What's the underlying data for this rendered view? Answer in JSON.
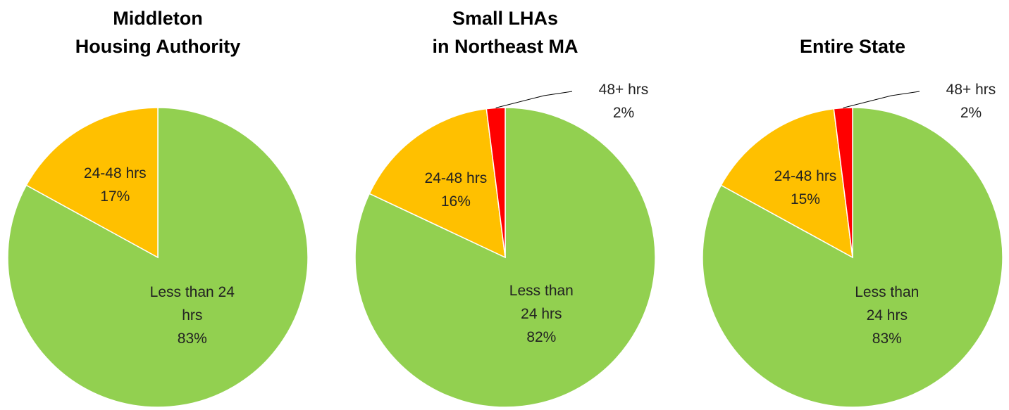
{
  "chart_data": [
    {
      "type": "pie",
      "title": [
        "Middleton",
        "Housing Authority"
      ],
      "categories": [
        "Less than 24 hrs",
        "24-48 hrs"
      ],
      "values": [
        83,
        17
      ],
      "value_labels": [
        "83%",
        "17%"
      ],
      "colors": [
        "#92d050",
        "#ffc000"
      ]
    },
    {
      "type": "pie",
      "title": [
        "Small LHAs",
        "in Northeast MA"
      ],
      "categories": [
        "Less than 24 hrs",
        "24-48 hrs",
        "48+ hrs"
      ],
      "values": [
        82,
        16,
        2
      ],
      "value_labels": [
        "82%",
        "16%",
        "2%"
      ],
      "colors": [
        "#92d050",
        "#ffc000",
        "#ff0000"
      ]
    },
    {
      "type": "pie",
      "title": [
        "Entire State"
      ],
      "categories": [
        "Less than 24 hrs",
        "24-48 hrs",
        "48+ hrs"
      ],
      "values": [
        83,
        15,
        2
      ],
      "value_labels": [
        "83%",
        "15%",
        "2%"
      ],
      "colors": [
        "#92d050",
        "#ffc000",
        "#ff0000"
      ]
    }
  ]
}
